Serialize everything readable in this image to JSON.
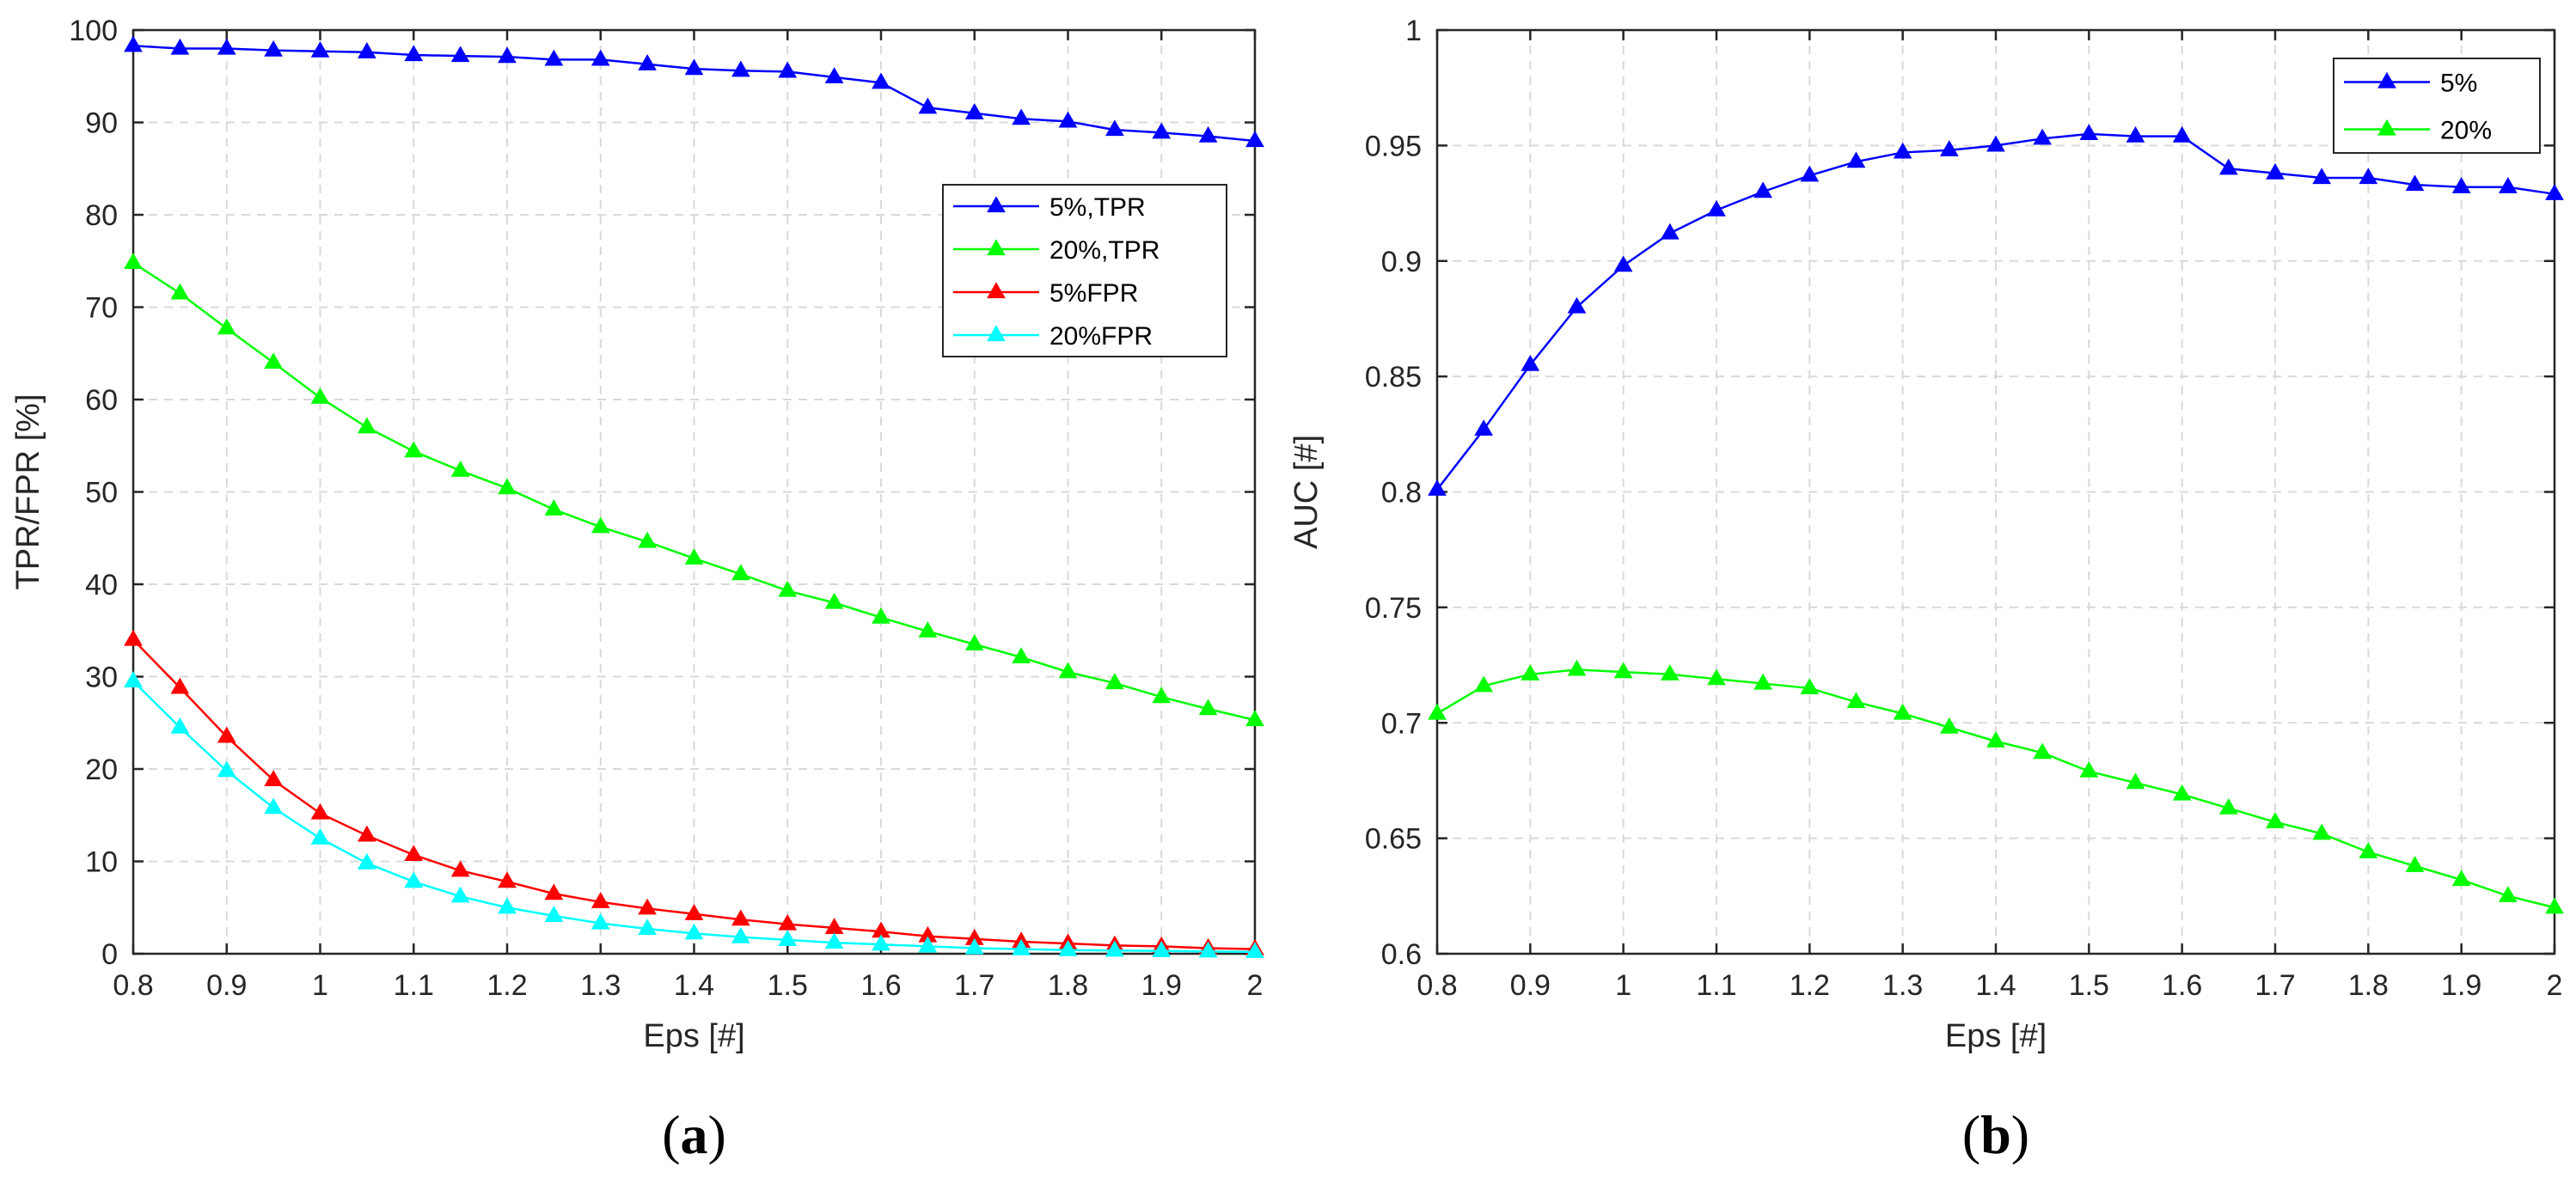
{
  "chart_data": [
    {
      "type": "line",
      "panel_label": "a",
      "title": "",
      "xlabel": "Eps [#]",
      "ylabel": "TPR/FPR [%]",
      "xlim": [
        0.8,
        2
      ],
      "ylim": [
        0,
        100
      ],
      "xticks": [
        0.8,
        0.9,
        1,
        1.1,
        1.2,
        1.3,
        1.4,
        1.5,
        1.6,
        1.7,
        1.8,
        1.9,
        2
      ],
      "xtick_labels": [
        "0.8",
        "0.9",
        "1",
        "1.1",
        "1.2",
        "1.3",
        "1.4",
        "1.5",
        "1.6",
        "1.7",
        "1.8",
        "1.9",
        "2"
      ],
      "yticks": [
        0,
        10,
        20,
        30,
        40,
        50,
        60,
        70,
        80,
        90,
        100
      ],
      "ytick_labels": [
        "0",
        "10",
        "20",
        "30",
        "40",
        "50",
        "60",
        "70",
        "80",
        "90",
        "100"
      ],
      "grid": true,
      "legend_position": "upper-right",
      "x": [
        0.8,
        0.85,
        0.9,
        0.95,
        1.0,
        1.05,
        1.1,
        1.15,
        1.2,
        1.25,
        1.3,
        1.35,
        1.4,
        1.45,
        1.5,
        1.55,
        1.6,
        1.65,
        1.7,
        1.75,
        1.8,
        1.85,
        1.9,
        1.95,
        2.0
      ],
      "series": [
        {
          "name": "5%,TPR",
          "color": "#0000ff",
          "values": [
            98.3,
            98.0,
            98.0,
            97.8,
            97.7,
            97.6,
            97.3,
            97.2,
            97.1,
            96.8,
            96.8,
            96.3,
            95.8,
            95.6,
            95.5,
            94.9,
            94.3,
            91.6,
            91.0,
            90.4,
            90.1,
            89.2,
            88.9,
            88.5,
            88.0
          ]
        },
        {
          "name": "20%,TPR",
          "color": "#00ff00",
          "values": [
            74.8,
            71.5,
            67.7,
            64.0,
            60.2,
            57.0,
            54.4,
            52.3,
            50.4,
            48.1,
            46.2,
            44.6,
            42.8,
            41.1,
            39.3,
            38.0,
            36.4,
            34.9,
            33.5,
            32.1,
            30.5,
            29.3,
            27.8,
            26.5,
            25.3
          ]
        },
        {
          "name": "5%FPR",
          "color": "#ff0000",
          "values": [
            34.0,
            28.8,
            23.5,
            18.8,
            15.2,
            12.8,
            10.7,
            9.0,
            7.8,
            6.5,
            5.6,
            4.9,
            4.3,
            3.7,
            3.2,
            2.8,
            2.4,
            1.9,
            1.6,
            1.3,
            1.1,
            0.9,
            0.8,
            0.6,
            0.5
          ]
        },
        {
          "name": "20%FPR",
          "color": "#00ffff",
          "values": [
            29.5,
            24.5,
            19.8,
            15.8,
            12.5,
            9.8,
            7.8,
            6.2,
            5.0,
            4.1,
            3.3,
            2.7,
            2.2,
            1.8,
            1.5,
            1.2,
            1.0,
            0.8,
            0.6,
            0.5,
            0.4,
            0.35,
            0.3,
            0.25,
            0.2
          ]
        }
      ]
    },
    {
      "type": "line",
      "panel_label": "b",
      "title": "",
      "xlabel": "Eps [#]",
      "ylabel": "AUC [#]",
      "xlim": [
        0.8,
        2
      ],
      "ylim": [
        0.6,
        1
      ],
      "xticks": [
        0.8,
        0.9,
        1,
        1.1,
        1.2,
        1.3,
        1.4,
        1.5,
        1.6,
        1.7,
        1.8,
        1.9,
        2
      ],
      "xtick_labels": [
        "0.8",
        "0.9",
        "1",
        "1.1",
        "1.2",
        "1.3",
        "1.4",
        "1.5",
        "1.6",
        "1.7",
        "1.8",
        "1.9",
        "2"
      ],
      "yticks": [
        0.6,
        0.65,
        0.7,
        0.75,
        0.8,
        0.85,
        0.9,
        0.95,
        1
      ],
      "ytick_labels": [
        "0.6",
        "0.65",
        "0.7",
        "0.75",
        "0.8",
        "0.85",
        "0.9",
        "0.95",
        "1"
      ],
      "grid": true,
      "legend_position": "upper-right",
      "x": [
        0.8,
        0.85,
        0.9,
        0.95,
        1.0,
        1.05,
        1.1,
        1.15,
        1.2,
        1.25,
        1.3,
        1.35,
        1.4,
        1.45,
        1.5,
        1.55,
        1.6,
        1.65,
        1.7,
        1.75,
        1.8,
        1.85,
        1.9,
        1.95,
        2.0
      ],
      "series": [
        {
          "name": "5%",
          "color": "#0000ff",
          "values": [
            0.801,
            0.827,
            0.855,
            0.88,
            0.898,
            0.912,
            0.922,
            0.93,
            0.937,
            0.943,
            0.947,
            0.948,
            0.95,
            0.953,
            0.955,
            0.954,
            0.954,
            0.94,
            0.938,
            0.936,
            0.936,
            0.933,
            0.932,
            0.932,
            0.929
          ]
        },
        {
          "name": "20%",
          "color": "#00ff00",
          "values": [
            0.704,
            0.716,
            0.721,
            0.723,
            0.722,
            0.721,
            0.719,
            0.717,
            0.715,
            0.709,
            0.704,
            0.698,
            0.692,
            0.687,
            0.679,
            0.674,
            0.669,
            0.663,
            0.657,
            0.652,
            0.644,
            0.638,
            0.632,
            0.625,
            0.62
          ]
        }
      ]
    }
  ]
}
